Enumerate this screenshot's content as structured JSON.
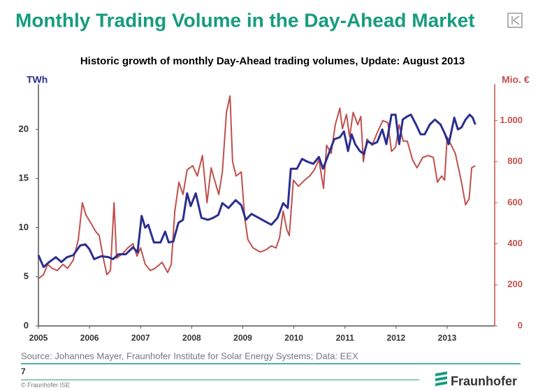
{
  "header": {
    "title": "Monthly Trading Volume in the Day-Ahead Market"
  },
  "chart_data": {
    "type": "line",
    "title": "Historic growth of monthly Day-Ahead trading volumes, Update: August 2013",
    "y_label": "TWh",
    "y2_label": "Mio. €",
    "xlim": [
      2005,
      2013.93
    ],
    "xticks": [
      2005,
      2006,
      2007,
      2008,
      2009,
      2010,
      2011,
      2012,
      2013
    ],
    "ylim": [
      0,
      24.6
    ],
    "yticks": [
      0,
      5,
      10,
      15,
      20
    ],
    "y2lim": [
      0,
      1177
    ],
    "y2ticks": [
      0,
      200,
      400,
      600,
      800,
      {
        "value": 1000,
        "label": "1.000"
      }
    ],
    "series": [
      {
        "color": "#2b2f8f",
        "x": [
          2005.0,
          2005.1,
          2005.21,
          2005.34,
          2005.45,
          2005.56,
          2005.68,
          2005.82,
          2005.92,
          2006.0,
          2006.09,
          2006.23,
          2006.37,
          2006.46,
          2006.57,
          2006.71,
          2006.85,
          2006.94,
          2007.02,
          2007.09,
          2007.15,
          2007.26,
          2007.39,
          2007.48,
          2007.55,
          2007.64,
          2007.74,
          2007.83,
          2007.91,
          2007.98,
          2008.08,
          2008.19,
          2008.32,
          2008.42,
          2008.52,
          2008.6,
          2008.72,
          2008.86,
          2008.97,
          2009.06,
          2009.17,
          2009.31,
          2009.45,
          2009.56,
          2009.68,
          2009.79,
          2009.88,
          2009.94,
          2010.06,
          2010.16,
          2010.27,
          2010.38,
          2010.49,
          2010.57,
          2010.68,
          2010.79,
          2010.9,
          2010.98,
          2011.06,
          2011.13,
          2011.2,
          2011.29,
          2011.37,
          2011.44,
          2011.54,
          2011.63,
          2011.73,
          2011.81,
          2011.91,
          2011.99,
          2012.06,
          2012.13,
          2012.21,
          2012.29,
          2012.39,
          2012.48,
          2012.56,
          2012.66,
          2012.76,
          2012.87,
          2012.96,
          2013.03,
          2013.14,
          2013.21,
          2013.28,
          2013.36,
          2013.44,
          2013.5,
          2013.55
        ],
        "values": [
          7.2,
          6.0,
          6.5,
          7.0,
          6.5,
          7.0,
          7.2,
          8.2,
          8.3,
          7.8,
          6.8,
          7.1,
          7.0,
          6.8,
          7.3,
          7.3,
          8.0,
          7.5,
          11.2,
          10.0,
          10.3,
          8.5,
          8.5,
          9.6,
          8.5,
          8.6,
          10.5,
          10.8,
          13.5,
          12.2,
          13.5,
          11.0,
          10.8,
          11.0,
          11.3,
          12.5,
          12.0,
          12.8,
          12.3,
          10.8,
          11.4,
          11.0,
          10.6,
          10.3,
          11.0,
          12.5,
          12.0,
          16.0,
          16.0,
          17.0,
          16.7,
          16.5,
          17.2,
          16.0,
          17.5,
          19.0,
          19.2,
          19.8,
          17.8,
          19.5,
          18.5,
          17.8,
          17.5,
          18.8,
          18.5,
          18.7,
          20.0,
          18.5,
          21.5,
          21.5,
          18.5,
          21.0,
          21.3,
          21.5,
          20.5,
          19.5,
          19.5,
          20.5,
          21.0,
          20.5,
          19.5,
          18.5,
          21.2,
          20.0,
          20.2,
          21.0,
          21.5,
          21.2,
          20.5
        ]
      },
      {
        "color": "#c0504d",
        "axis": "y2",
        "x": [
          2005.0,
          2005.1,
          2005.18,
          2005.27,
          2005.37,
          2005.48,
          2005.57,
          2005.68,
          2005.78,
          2005.86,
          2005.93,
          2006.03,
          2006.12,
          2006.19,
          2006.27,
          2006.34,
          2006.41,
          2006.48,
          2006.53,
          2006.64,
          2006.75,
          2006.85,
          2006.93,
          2007.0,
          2007.09,
          2007.19,
          2007.28,
          2007.42,
          2007.53,
          2007.6,
          2007.67,
          2007.75,
          2007.83,
          2007.91,
          2008.02,
          2008.11,
          2008.21,
          2008.3,
          2008.38,
          2008.46,
          2008.53,
          2008.6,
          2008.68,
          2008.75,
          2008.8,
          2008.87,
          2008.97,
          2009.04,
          2009.1,
          2009.2,
          2009.34,
          2009.45,
          2009.56,
          2009.65,
          2009.72,
          2009.79,
          2009.86,
          2009.91,
          2009.99,
          2010.09,
          2010.21,
          2010.31,
          2010.4,
          2010.49,
          2010.58,
          2010.64,
          2010.73,
          2010.81,
          2010.9,
          2010.95,
          2011.03,
          2011.09,
          2011.16,
          2011.25,
          2011.31,
          2011.36,
          2011.43,
          2011.53,
          2011.63,
          2011.74,
          2011.84,
          2011.91,
          2011.99,
          2012.06,
          2012.14,
          2012.22,
          2012.32,
          2012.41,
          2012.52,
          2012.63,
          2012.73,
          2012.81,
          2012.89,
          2012.95,
          2013.0,
          2013.08,
          2013.16,
          2013.28,
          2013.36,
          2013.43,
          2013.48,
          2013.55
        ],
        "values": [
          230,
          250,
          300,
          280,
          270,
          300,
          280,
          320,
          420,
          600,
          540,
          500,
          460,
          440,
          330,
          250,
          270,
          600,
          330,
          350,
          380,
          400,
          340,
          380,
          300,
          270,
          280,
          310,
          260,
          300,
          560,
          700,
          640,
          760,
          780,
          730,
          830,
          600,
          770,
          700,
          640,
          750,
          1040,
          1120,
          800,
          730,
          750,
          520,
          420,
          380,
          360,
          370,
          390,
          380,
          430,
          560,
          470,
          440,
          710,
          680,
          710,
          730,
          760,
          810,
          670,
          880,
          840,
          980,
          1060,
          960,
          1030,
          920,
          1040,
          980,
          1020,
          800,
          910,
          880,
          940,
          1000,
          990,
          850,
          870,
          980,
          900,
          900,
          810,
          770,
          820,
          830,
          820,
          700,
          730,
          710,
          920,
          880,
          840,
          700,
          590,
          620,
          770,
          780
        ]
      }
    ]
  },
  "footer": {
    "source": "Source: Johannes Mayer, Fraunhofer Institute for Solar Energy Systems; Data: EEX",
    "page": "7",
    "copyright": "© Fraunhofer ISE",
    "logo": "Fraunhofer"
  }
}
